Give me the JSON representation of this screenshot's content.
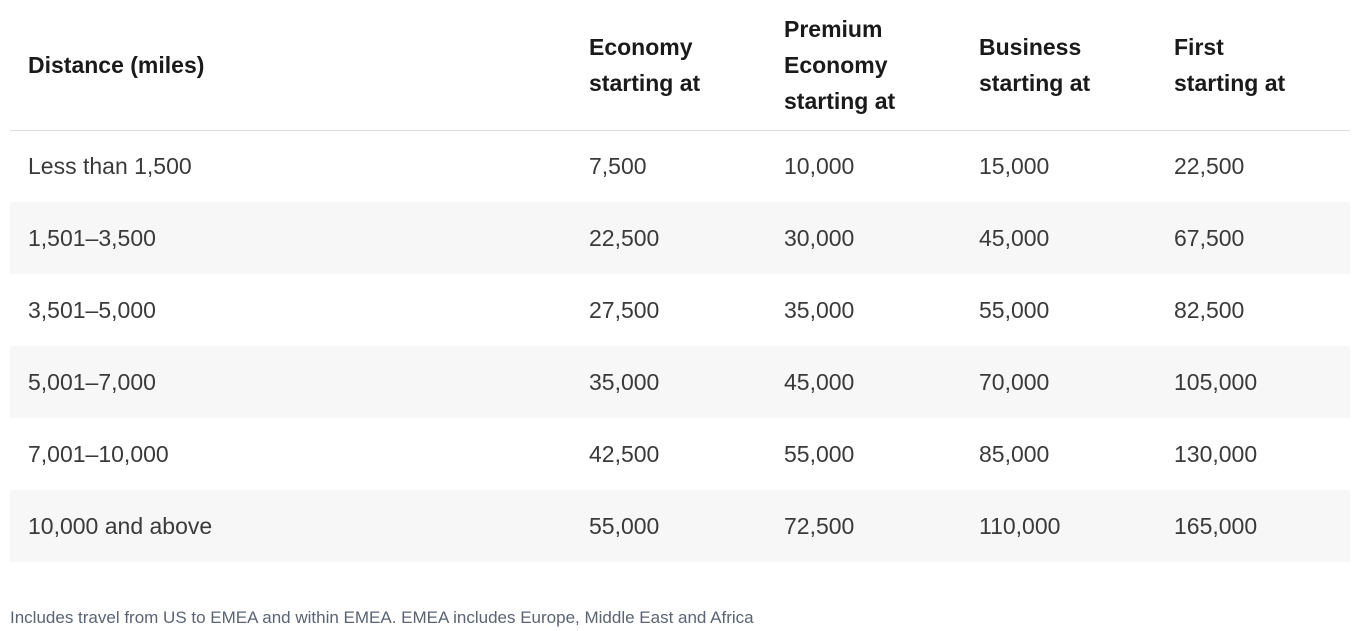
{
  "table": {
    "headers": [
      {
        "lines": [
          "Distance (miles)"
        ]
      },
      {
        "lines": [
          "Economy",
          "starting at"
        ]
      },
      {
        "lines": [
          "Premium",
          "Economy",
          "starting at"
        ]
      },
      {
        "lines": [
          "Business",
          "starting at"
        ]
      },
      {
        "lines": [
          "First",
          "starting at"
        ]
      }
    ],
    "rows": [
      [
        "Less than 1,500",
        "7,500",
        "10,000",
        "15,000",
        "22,500"
      ],
      [
        "1,501–3,500",
        "22,500",
        "30,000",
        "45,000",
        "67,500"
      ],
      [
        "3,501–5,000",
        "27,500",
        "35,000",
        "55,000",
        "82,500"
      ],
      [
        "5,001–7,000",
        "35,000",
        "45,000",
        "70,000",
        "105,000"
      ],
      [
        "7,001–10,000",
        "42,500",
        "55,000",
        "85,000",
        "130,000"
      ],
      [
        "10,000 and above",
        "55,000",
        "72,500",
        "110,000",
        "165,000"
      ]
    ]
  },
  "footnote": "Includes travel from US to EMEA and within EMEA. EMEA includes Europe, Middle East and Africa"
}
